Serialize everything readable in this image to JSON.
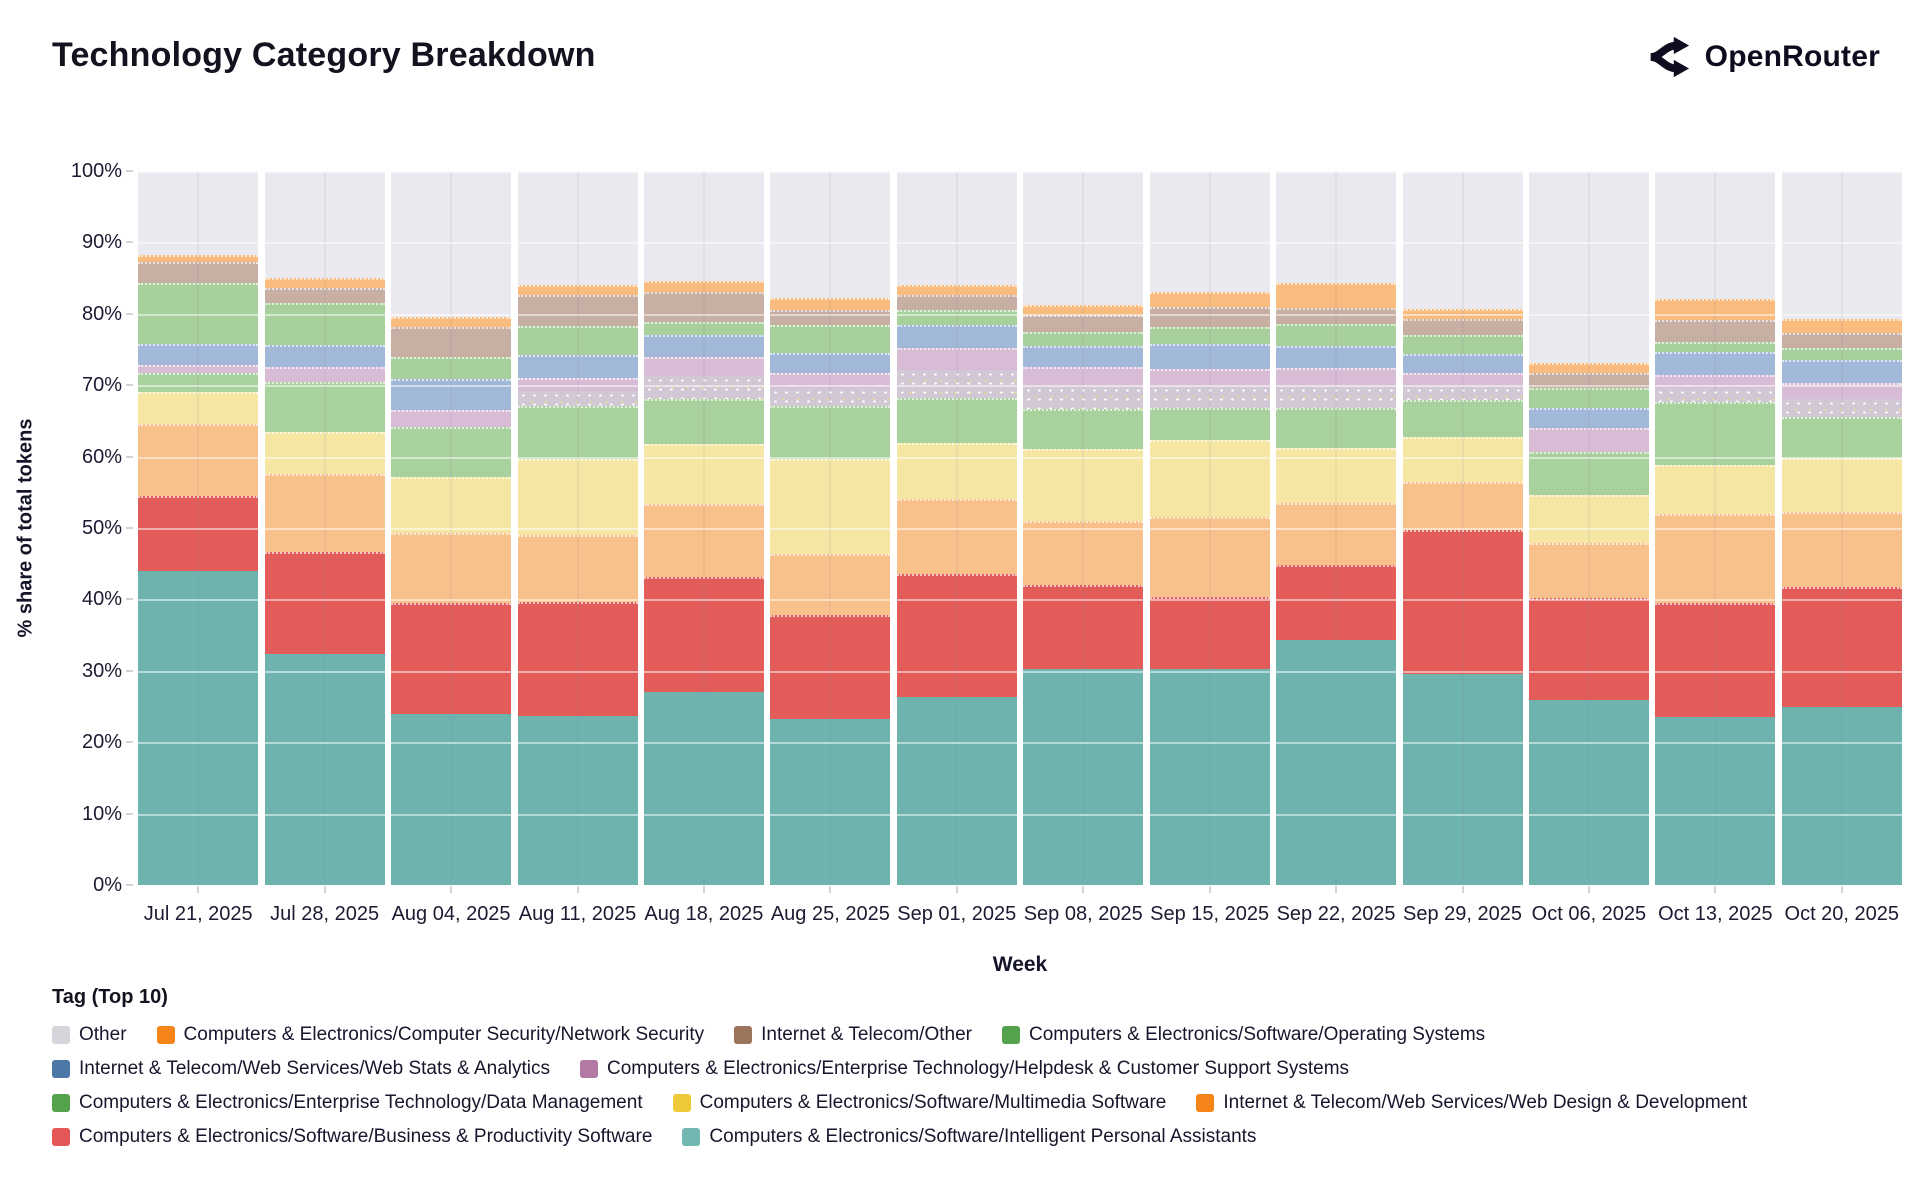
{
  "header": {
    "title": "Technology Category Breakdown",
    "brand": "OpenRouter"
  },
  "chart": {
    "y_axis": {
      "title": "% share of total tokens",
      "ticks": [
        "0%",
        "10%",
        "20%",
        "30%",
        "40%",
        "50%",
        "60%",
        "70%",
        "80%",
        "90%",
        "100%"
      ]
    },
    "x_axis": {
      "title": "Week"
    },
    "legend": {
      "title": "Tag (Top 10)",
      "rows": [
        [
          0,
          1,
          2,
          3
        ],
        [
          4,
          5
        ],
        [
          6,
          7,
          8
        ],
        [
          9,
          10
        ]
      ],
      "items": [
        {
          "key": "other",
          "label": "Other",
          "color": "#d5d5db",
          "stipple": false
        },
        {
          "key": "network_security",
          "label": "Computers & Electronics/Computer Security/Network Security",
          "color": "#f58518",
          "stipple": false
        },
        {
          "key": "internet_telecom_other",
          "label": "Internet & Telecom/Other",
          "color": "#9d755d",
          "stipple": true
        },
        {
          "key": "operating_systems",
          "label": "Computers & Electronics/Software/Operating Systems",
          "color": "#54a24b",
          "stipple": false
        },
        {
          "key": "web_stats_analytics",
          "label": "Internet & Telecom/Web Services/Web Stats & Analytics",
          "color": "#4c78a8",
          "stipple": false
        },
        {
          "key": "helpdesk_support",
          "label": "Computers & Electronics/Enterprise Technology/Helpdesk & Customer Support Systems",
          "color": "#b279a2",
          "stipple": false
        },
        {
          "key": "data_management",
          "label": "Computers & Electronics/Enterprise Technology/Data Management",
          "color": "#54a24b",
          "stipple": false
        },
        {
          "key": "multimedia_software",
          "label": "Computers & Electronics/Software/Multimedia Software",
          "color": "#eeca3b",
          "stipple": false
        },
        {
          "key": "web_design_dev",
          "label": "Internet & Telecom/Web Services/Web Design & Development",
          "color": "#f58518",
          "stipple": false
        },
        {
          "key": "business_productivity",
          "label": "Computers & Electronics/Software/Business & Productivity Software",
          "color": "#e45756",
          "stipple": false
        },
        {
          "key": "intelligent_personal_assistants",
          "label": "Computers & Electronics/Software/Intelligent Personal Assistants",
          "color": "#72b7b2",
          "stipple": false
        }
      ]
    }
  },
  "chart_data": {
    "type": "bar",
    "stacked": true,
    "units": "% share of total tokens",
    "ylim": [
      0,
      100
    ],
    "grid": true,
    "legend_position": "bottom",
    "categories": [
      "Jul 21, 2025",
      "Jul 28, 2025",
      "Aug 04, 2025",
      "Aug 11, 2025",
      "Aug 18, 2025",
      "Aug 25, 2025",
      "Sep 01, 2025",
      "Sep 08, 2025",
      "Sep 15, 2025",
      "Sep 22, 2025",
      "Sep 29, 2025",
      "Oct 06, 2025",
      "Oct 13, 2025",
      "Oct 20, 2025"
    ],
    "series_note": "bottom-to-top stack order; values are percent of total tokens per week",
    "series": [
      {
        "key": "intelligent_personal_assistants",
        "name": "Computers & Electronics/Software/Intelligent Personal Assistants",
        "fill": "#6fb3af",
        "values": [
          44.0,
          32.4,
          24.0,
          23.7,
          27.0,
          23.3,
          26.4,
          30.2,
          30.2,
          34.3,
          29.6,
          25.9,
          23.5,
          24.9
        ]
      },
      {
        "key": "business_productivity",
        "name": "Computers & Electronics/Software/Business & Productivity Software",
        "fill": "#e25d59",
        "values": [
          10.5,
          14.2,
          15.5,
          16.0,
          16.2,
          14.5,
          17.1,
          11.8,
          10.2,
          10.5,
          20.1,
          14.3,
          16.0,
          16.8
        ]
      },
      {
        "key": "web_design_dev",
        "name": "Internet & Telecom/Web Services/Web Design & Development",
        "fill": "#f8c08a",
        "values": [
          10.0,
          11.0,
          9.8,
          9.3,
          10.1,
          8.6,
          10.6,
          9.0,
          11.1,
          8.7,
          6.7,
          7.7,
          12.4,
          10.6
        ]
      },
      {
        "key": "multimedia_software",
        "name": "Computers & Electronics/Software/Multimedia Software",
        "fill": "#f5e7a3",
        "values": [
          4.5,
          5.8,
          7.8,
          10.7,
          8.4,
          13.2,
          7.8,
          10.1,
          10.8,
          7.7,
          6.3,
          6.7,
          6.9,
          7.5
        ]
      },
      {
        "key": "data_management",
        "name": "Computers & Electronics/Enterprise Technology/Data Management",
        "fill": "#a9d19e",
        "values": [
          2.7,
          7.0,
          7.0,
          7.4,
          6.4,
          7.5,
          6.3,
          5.6,
          4.5,
          5.6,
          5.2,
          6.0,
          8.8,
          5.7
        ]
      },
      {
        "key": "helpdesk_support",
        "name": "Computers & Electronics/Enterprise Technology/Helpdesk & Customer Support Systems",
        "fill": "#d8bcd6",
        "values": [
          1.1,
          2.1,
          2.4,
          3.9,
          5.9,
          4.6,
          7.0,
          5.8,
          5.5,
          5.6,
          3.8,
          3.4,
          3.8,
          4.8
        ]
      },
      {
        "key": "web_stats_analytics",
        "name": "Internet & Telecom/Web Services/Web Stats & Analytics",
        "fill": "#a2b8d8",
        "values": [
          3.0,
          3.2,
          4.4,
          3.3,
          3.1,
          2.8,
          3.2,
          3.0,
          3.5,
          3.1,
          2.7,
          2.8,
          3.2,
          3.2
        ]
      },
      {
        "key": "operating_systems",
        "name": "Computers & Electronics/Software/Operating Systems",
        "fill": "#a8d09c",
        "values": [
          8.5,
          5.8,
          3.1,
          4.0,
          1.7,
          3.9,
          2.1,
          2.0,
          2.4,
          3.1,
          2.6,
          2.8,
          1.5,
          1.7
        ]
      },
      {
        "key": "internet_telecom_other",
        "name": "Internet & Telecom/Other",
        "fill": "#c7afa3",
        "values": [
          3.0,
          2.1,
          4.2,
          4.4,
          4.2,
          2.1,
          2.1,
          2.4,
          2.8,
          2.2,
          2.3,
          2.1,
          3.0,
          2.1
        ]
      },
      {
        "key": "network_security",
        "name": "Computers & Electronics/Computer Security/Network Security",
        "fill": "#f9bc7e",
        "values": [
          1.0,
          1.4,
          1.4,
          1.4,
          1.6,
          1.7,
          1.5,
          1.4,
          2.1,
          3.5,
          1.4,
          1.4,
          3.0,
          2.0
        ]
      },
      {
        "key": "other",
        "name": "Other",
        "fill": "#e9e9ef",
        "values": [
          11.7,
          15.0,
          20.4,
          15.9,
          15.4,
          17.8,
          15.9,
          18.7,
          16.9,
          15.7,
          19.3,
          26.9,
          17.9,
          20.7
        ]
      }
    ],
    "helpdesk_stipple_weeks": [
      false,
      false,
      false,
      true,
      true,
      true,
      true,
      true,
      true,
      true,
      true,
      false,
      true,
      true
    ]
  }
}
